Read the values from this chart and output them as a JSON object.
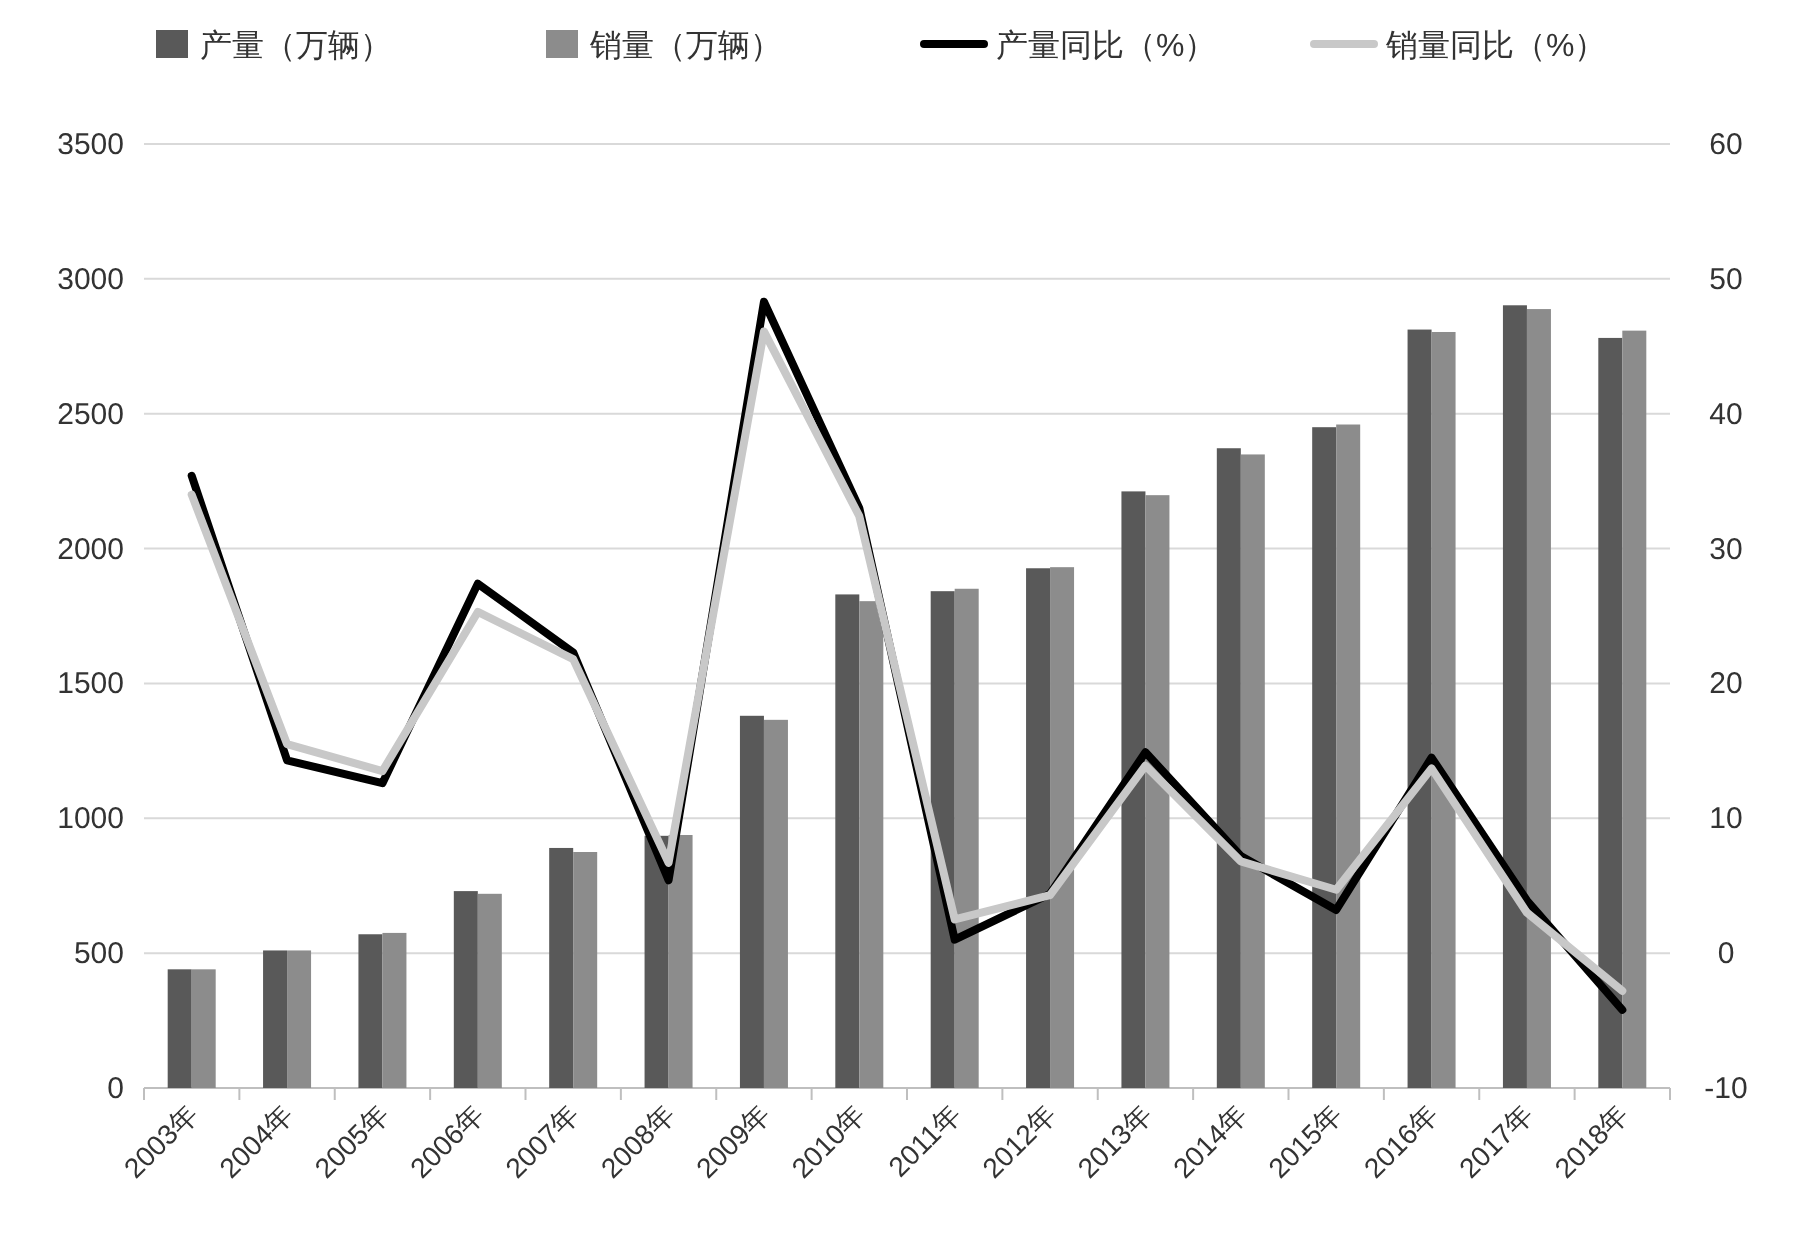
{
  "chart_data": {
    "type": "bar",
    "categories": [
      "2003年",
      "2004年",
      "2005年",
      "2006年",
      "2007年",
      "2008年",
      "2009年",
      "2010年",
      "2011年",
      "2012年",
      "2013年",
      "2014年",
      "2015年",
      "2016年",
      "2017年",
      "2018年"
    ],
    "series": [
      {
        "name": "产量（万辆）",
        "color": "#595959",
        "values": [
          440,
          510,
          570,
          730,
          890,
          935,
          1380,
          1830,
          1842,
          1927,
          2212,
          2372,
          2450,
          2812,
          2902,
          2781
        ]
      },
      {
        "name": "销量（万辆）",
        "color": "#8c8c8c",
        "values": [
          440,
          510,
          575,
          720,
          875,
          938,
          1365,
          1805,
          1851,
          1931,
          2198,
          2349,
          2460,
          2803,
          2888,
          2808
        ]
      },
      {
        "name": "产量同比（%）",
        "type": "line",
        "axis": "y2",
        "color": "#000000",
        "values": [
          35.4,
          14.3,
          12.6,
          27.4,
          22.3,
          5.4,
          48.3,
          33,
          1,
          4.4,
          14.9,
          7.2,
          3.2,
          14.5,
          3.9,
          -4.2
        ]
      },
      {
        "name": "销量同比（%）",
        "type": "line",
        "axis": "y2",
        "color": "#c8c8c8",
        "values": [
          34,
          15.5,
          13.5,
          25.3,
          21.8,
          6.7,
          46.1,
          32.4,
          2.5,
          4.3,
          13.9,
          6.8,
          4.7,
          13.7,
          3,
          -2.8
        ]
      }
    ],
    "ylim": [
      0,
      3500
    ],
    "yticks": [
      0,
      500,
      1000,
      1500,
      2000,
      2500,
      3000,
      3500
    ],
    "y2lim": [
      -10,
      60
    ],
    "y2ticks": [
      -10,
      0,
      10,
      20,
      30,
      40,
      50,
      60
    ],
    "grid": "y",
    "legend": "top"
  }
}
